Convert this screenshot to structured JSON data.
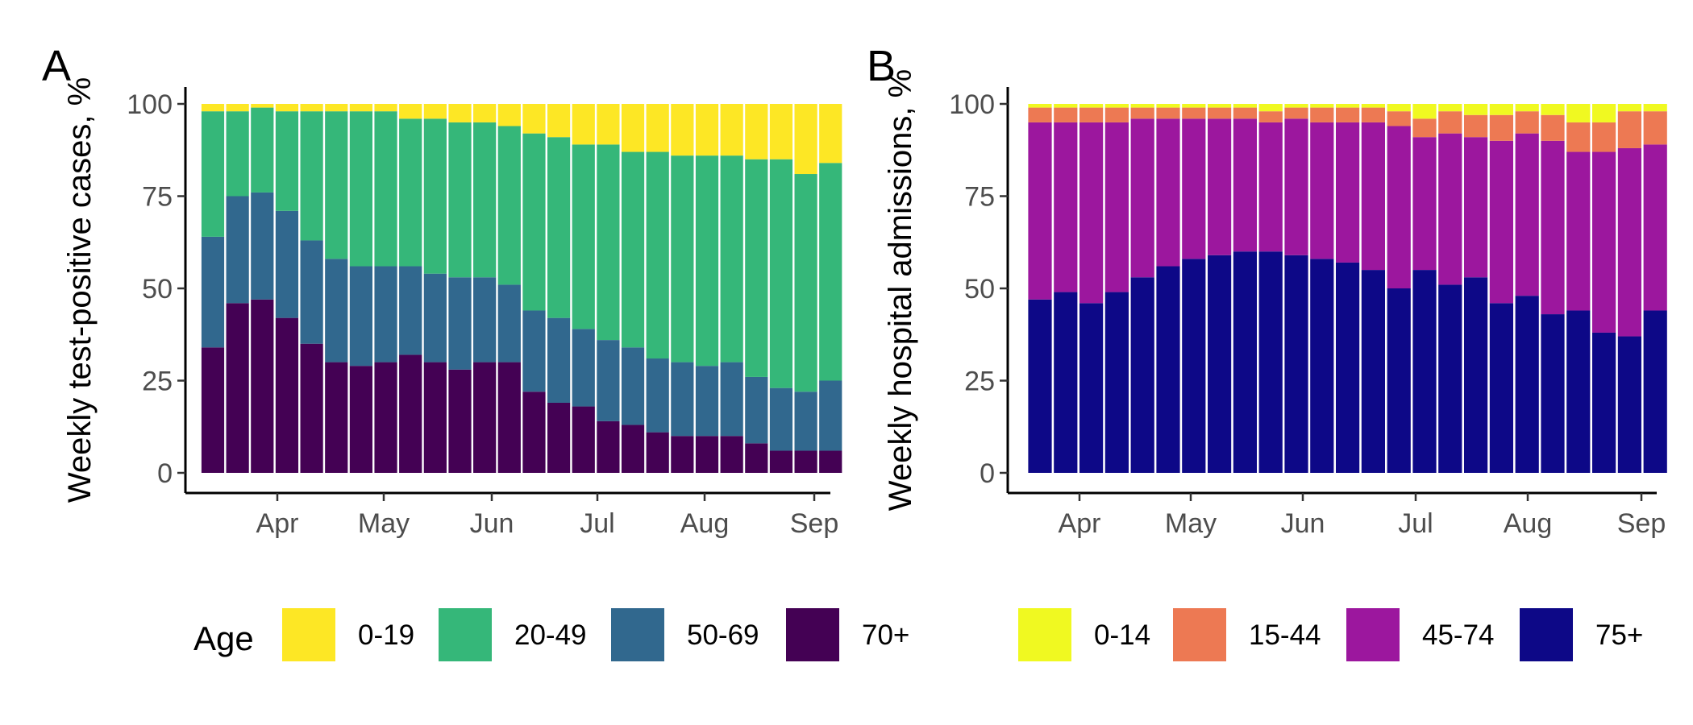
{
  "legend": {
    "title": "Age",
    "left": [
      {
        "label": "0-19",
        "color": "#FDE725"
      },
      {
        "label": "20-49",
        "color": "#35B779"
      },
      {
        "label": "50-69",
        "color": "#31688E"
      },
      {
        "label": "70+",
        "color": "#440154"
      }
    ],
    "right": [
      {
        "label": "0-14",
        "color": "#F0F921"
      },
      {
        "label": "15-44",
        "color": "#ED7953"
      },
      {
        "label": "45-74",
        "color": "#9C179E"
      },
      {
        "label": "75+",
        "color": "#0D0887"
      }
    ]
  },
  "chart_data": [
    {
      "type": "bar",
      "stacked": true,
      "panel_tag": "A",
      "ylabel": "Weekly test-positive cases, %",
      "ylim": [
        0,
        100
      ],
      "yticks": [
        0,
        25,
        50,
        75,
        100
      ],
      "xticks": [
        "Apr",
        "May",
        "Jun",
        "Jul",
        "Aug",
        "Sep"
      ],
      "grid": false,
      "legend_position": "bottom",
      "n_weeks": 26,
      "series": [
        {
          "name": "70+",
          "color": "#440154",
          "values": [
            34,
            46,
            47,
            42,
            35,
            30,
            29,
            30,
            32,
            30,
            28,
            30,
            30,
            22,
            19,
            18,
            14,
            13,
            11,
            10,
            10,
            10,
            8,
            6,
            6,
            6
          ]
        },
        {
          "name": "50-69",
          "color": "#31688E",
          "values": [
            30,
            29,
            29,
            29,
            28,
            28,
            27,
            26,
            24,
            24,
            25,
            23,
            21,
            22,
            23,
            21,
            22,
            21,
            20,
            20,
            19,
            20,
            18,
            17,
            16,
            19
          ]
        },
        {
          "name": "20-49",
          "color": "#35B779",
          "values": [
            34,
            23,
            23,
            27,
            35,
            40,
            42,
            42,
            40,
            42,
            42,
            42,
            43,
            48,
            49,
            50,
            53,
            53,
            56,
            56,
            57,
            56,
            59,
            62,
            59,
            59
          ]
        },
        {
          "name": "0-19",
          "color": "#FDE725",
          "values": [
            2,
            2,
            1,
            2,
            2,
            2,
            2,
            2,
            4,
            4,
            5,
            5,
            6,
            8,
            9,
            11,
            11,
            13,
            13,
            14,
            14,
            14,
            15,
            15,
            19,
            16
          ]
        }
      ]
    },
    {
      "type": "bar",
      "stacked": true,
      "panel_tag": "B",
      "ylabel": "Weekly hospital admissions, %",
      "ylim": [
        0,
        100
      ],
      "yticks": [
        0,
        25,
        50,
        75,
        100
      ],
      "xticks": [
        "Apr",
        "May",
        "Jun",
        "Jul",
        "Aug",
        "Sep"
      ],
      "grid": false,
      "legend_position": "bottom",
      "n_weeks": 25,
      "series": [
        {
          "name": "75+",
          "color": "#0D0887",
          "values": [
            47,
            49,
            46,
            49,
            53,
            56,
            58,
            59,
            60,
            60,
            59,
            58,
            57,
            55,
            50,
            55,
            51,
            53,
            46,
            48,
            43,
            44,
            38,
            37,
            44
          ]
        },
        {
          "name": "45-74",
          "color": "#9C179E",
          "values": [
            48,
            46,
            49,
            46,
            43,
            40,
            38,
            37,
            36,
            35,
            37,
            37,
            38,
            40,
            44,
            36,
            41,
            38,
            44,
            44,
            47,
            43,
            49,
            51,
            45
          ]
        },
        {
          "name": "15-44",
          "color": "#ED7953",
          "values": [
            4,
            4,
            4,
            4,
            3,
            3,
            3,
            3,
            3,
            3,
            3,
            4,
            4,
            4,
            4,
            5,
            6,
            6,
            7,
            6,
            7,
            8,
            8,
            10,
            9
          ]
        },
        {
          "name": "0-14",
          "color": "#F0F921",
          "values": [
            1,
            1,
            1,
            1,
            1,
            1,
            1,
            1,
            1,
            2,
            1,
            1,
            1,
            1,
            2,
            4,
            2,
            3,
            3,
            2,
            3,
            5,
            5,
            2,
            2
          ]
        }
      ]
    }
  ]
}
